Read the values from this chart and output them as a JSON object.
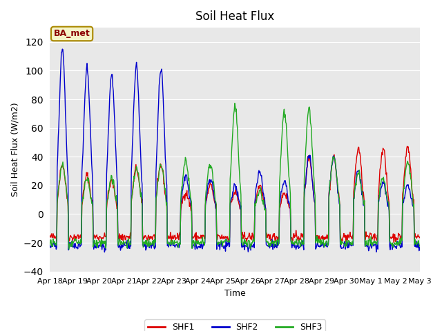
{
  "title": "Soil Heat Flux",
  "ylabel": "Soil Heat Flux (W/m2)",
  "xlabel": "Time",
  "annotation": "BA_met",
  "ylim": [
    -40,
    130
  ],
  "yticks": [
    -40,
    -20,
    0,
    20,
    40,
    60,
    80,
    100,
    120
  ],
  "background_color": "#e8e8e8",
  "colors": {
    "SHF1": "#dd0000",
    "SHF2": "#0000cc",
    "SHF3": "#22aa22"
  },
  "legend_labels": [
    "SHF1",
    "SHF2",
    "SHF3"
  ],
  "x_tick_labels": [
    "Apr 18",
    "Apr 19",
    "Apr 20",
    "Apr 21",
    "Apr 22",
    "Apr 23",
    "Apr 24",
    "Apr 25",
    "Apr 26",
    "Apr 27",
    "Apr 28",
    "Apr 29",
    "Apr 30",
    "May 1",
    "May 2",
    "May 3"
  ],
  "n_days": 15,
  "points_per_day": 48,
  "shf1_peaks": [
    35,
    27,
    23,
    32,
    34,
    15,
    20,
    15,
    20,
    15,
    40,
    40,
    46,
    46,
    47
  ],
  "shf2_peaks": [
    115,
    102,
    98,
    102,
    102,
    27,
    25,
    20,
    30,
    22,
    40,
    40,
    30,
    22,
    20
  ],
  "shf3_peaks": [
    35,
    25,
    25,
    32,
    35,
    38,
    35,
    75,
    15,
    72,
    75,
    40,
    30,
    25,
    37
  ],
  "shf1_night": -16.0,
  "shf2_night": -22.0,
  "shf3_night": -20.0
}
